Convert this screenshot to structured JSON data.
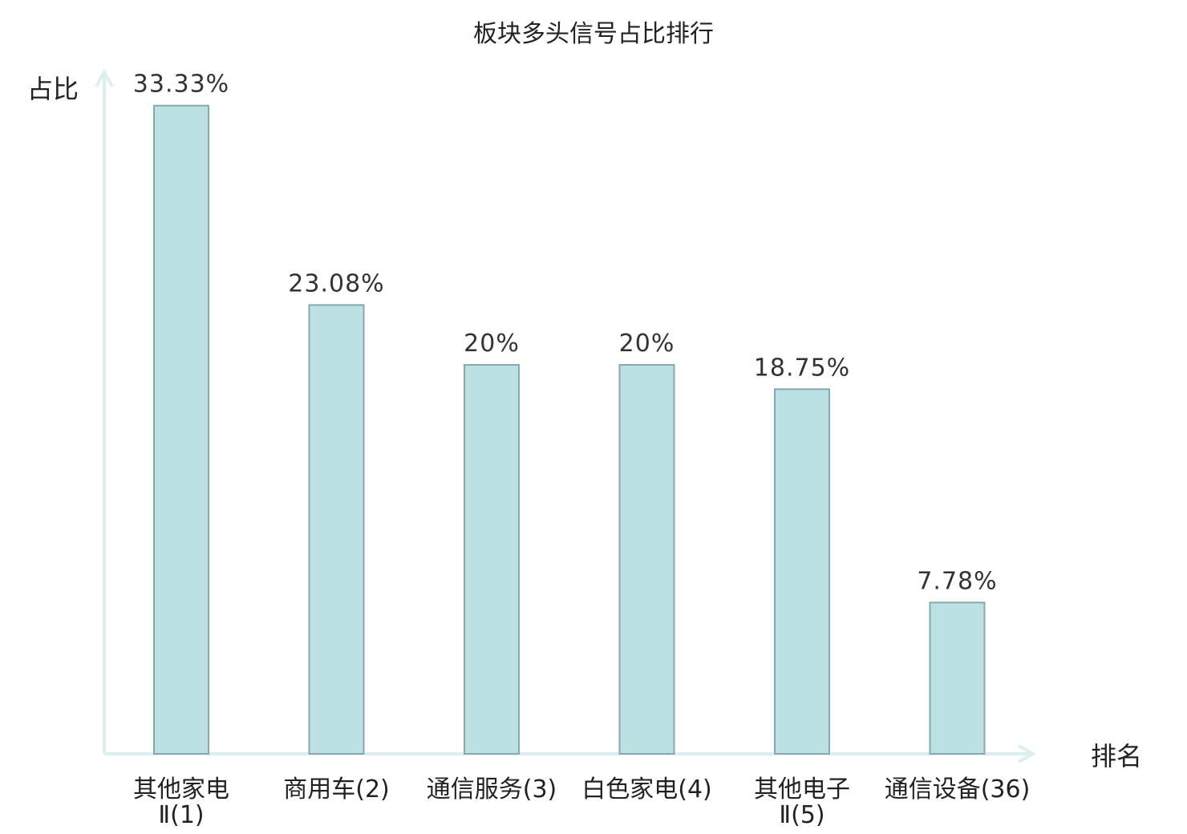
{
  "chart_data": {
    "type": "bar",
    "title": "板块多头信号占比排行",
    "ylabel": "占比",
    "xlabel": "排名",
    "ylim": [
      0,
      35
    ],
    "grid": false,
    "categories": [
      {
        "lines": [
          "其他家电",
          "Ⅱ(1)"
        ],
        "highlight": false
      },
      {
        "lines": [
          "商用车(2)"
        ],
        "highlight": false
      },
      {
        "lines": [
          "通信服务(3)"
        ],
        "highlight": false
      },
      {
        "lines": [
          "白色家电(4)"
        ],
        "highlight": false
      },
      {
        "lines": [
          "其他电子",
          "Ⅱ(5)"
        ],
        "highlight": false
      },
      {
        "lines": [
          "通信设备(36)"
        ],
        "highlight": true
      }
    ],
    "values": [
      33.33,
      23.08,
      20,
      20,
      18.75,
      7.78
    ],
    "data_labels": [
      "33.33%",
      "23.08%",
      "20%",
      "20%",
      "18.75%",
      "7.78%"
    ],
    "colors": {
      "bar_fill": "#bde0e3",
      "bar_stroke": "#86a9ab",
      "axis": "#dcefee",
      "highlight_text": "#e0191e"
    }
  }
}
